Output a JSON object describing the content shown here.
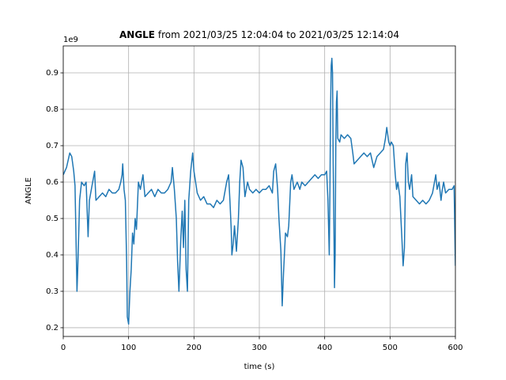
{
  "chart_data": {
    "type": "line",
    "title_bold": "ANGLE",
    "title": "from 2021/03/25 12:04:04 to 2021/03/25 12:14:04",
    "xlabel": "time (s)",
    "ylabel": "ANGLE",
    "y_offset_label": "1e9",
    "xlim": [
      0,
      600
    ],
    "ylim": [
      0.176,
      0.974
    ],
    "xticks": [
      0,
      100,
      200,
      300,
      400,
      500,
      600
    ],
    "yticks": [
      0.2,
      0.3,
      0.4,
      0.5,
      0.6,
      0.7,
      0.8,
      0.9
    ],
    "grid": true,
    "series": [
      {
        "name": "ANGLE",
        "color": "#1f77b4",
        "x": [
          0,
          5,
          10,
          13,
          16,
          18,
          20,
          21,
          22,
          24,
          25,
          28,
          32,
          35,
          38,
          40,
          45,
          48,
          50,
          55,
          60,
          65,
          70,
          75,
          80,
          85,
          88,
          90,
          91,
          93,
          95,
          97,
          98,
          100,
          102,
          104,
          106,
          108,
          110,
          112,
          115,
          118,
          122,
          125,
          130,
          135,
          140,
          145,
          150,
          155,
          160,
          165,
          167,
          170,
          173,
          175,
          177,
          178,
          180,
          182,
          184,
          186,
          188,
          190,
          192,
          195,
          198,
          200,
          205,
          210,
          215,
          220,
          225,
          230,
          235,
          240,
          245,
          250,
          253,
          255,
          257,
          258,
          260,
          262,
          265,
          268,
          270,
          272,
          275,
          278,
          282,
          285,
          290,
          295,
          300,
          305,
          310,
          315,
          320,
          322,
          325,
          328,
          330,
          333,
          335,
          337,
          340,
          343,
          345,
          348,
          350,
          353,
          358,
          362,
          365,
          370,
          375,
          380,
          385,
          390,
          395,
          400,
          403,
          405,
          407,
          408,
          409,
          410,
          411,
          412,
          413,
          414,
          415,
          416,
          417,
          418,
          419,
          420,
          423,
          425,
          430,
          435,
          440,
          443,
          445,
          450,
          455,
          460,
          465,
          470,
          475,
          480,
          485,
          490,
          493,
          495,
          498,
          500,
          502,
          505,
          508,
          510,
          512,
          515,
          518,
          520,
          522,
          524,
          526,
          528,
          530,
          533,
          535,
          540,
          545,
          550,
          555,
          560,
          565,
          568,
          570,
          572,
          575,
          578,
          580,
          582,
          585,
          590,
          595,
          598,
          600
        ],
        "values": [
          0.62,
          0.64,
          0.68,
          0.67,
          0.63,
          0.59,
          0.4,
          0.3,
          0.35,
          0.48,
          0.55,
          0.6,
          0.59,
          0.6,
          0.45,
          0.55,
          0.6,
          0.63,
          0.55,
          0.56,
          0.57,
          0.56,
          0.58,
          0.57,
          0.57,
          0.58,
          0.6,
          0.62,
          0.65,
          0.58,
          0.55,
          0.38,
          0.23,
          0.21,
          0.3,
          0.36,
          0.46,
          0.43,
          0.5,
          0.47,
          0.6,
          0.58,
          0.62,
          0.56,
          0.57,
          0.58,
          0.56,
          0.58,
          0.57,
          0.57,
          0.58,
          0.6,
          0.64,
          0.58,
          0.5,
          0.38,
          0.3,
          0.35,
          0.45,
          0.52,
          0.42,
          0.55,
          0.36,
          0.3,
          0.55,
          0.63,
          0.68,
          0.63,
          0.57,
          0.55,
          0.56,
          0.54,
          0.54,
          0.53,
          0.55,
          0.54,
          0.55,
          0.6,
          0.62,
          0.55,
          0.47,
          0.4,
          0.43,
          0.48,
          0.41,
          0.5,
          0.6,
          0.66,
          0.64,
          0.56,
          0.6,
          0.58,
          0.57,
          0.58,
          0.57,
          0.58,
          0.58,
          0.59,
          0.57,
          0.63,
          0.65,
          0.58,
          0.5,
          0.41,
          0.26,
          0.35,
          0.46,
          0.45,
          0.48,
          0.6,
          0.62,
          0.58,
          0.6,
          0.58,
          0.6,
          0.59,
          0.6,
          0.61,
          0.62,
          0.61,
          0.62,
          0.62,
          0.63,
          0.55,
          0.4,
          0.57,
          0.8,
          0.92,
          0.94,
          0.9,
          0.65,
          0.5,
          0.31,
          0.4,
          0.7,
          0.82,
          0.85,
          0.72,
          0.71,
          0.73,
          0.72,
          0.73,
          0.72,
          0.68,
          0.65,
          0.66,
          0.67,
          0.68,
          0.67,
          0.68,
          0.64,
          0.67,
          0.68,
          0.69,
          0.72,
          0.75,
          0.71,
          0.7,
          0.71,
          0.7,
          0.62,
          0.58,
          0.6,
          0.56,
          0.45,
          0.37,
          0.42,
          0.65,
          0.68,
          0.6,
          0.58,
          0.62,
          0.56,
          0.55,
          0.54,
          0.55,
          0.54,
          0.55,
          0.57,
          0.6,
          0.62,
          0.58,
          0.6,
          0.55,
          0.58,
          0.6,
          0.57,
          0.58,
          0.58,
          0.59,
          0.37
        ]
      }
    ]
  }
}
